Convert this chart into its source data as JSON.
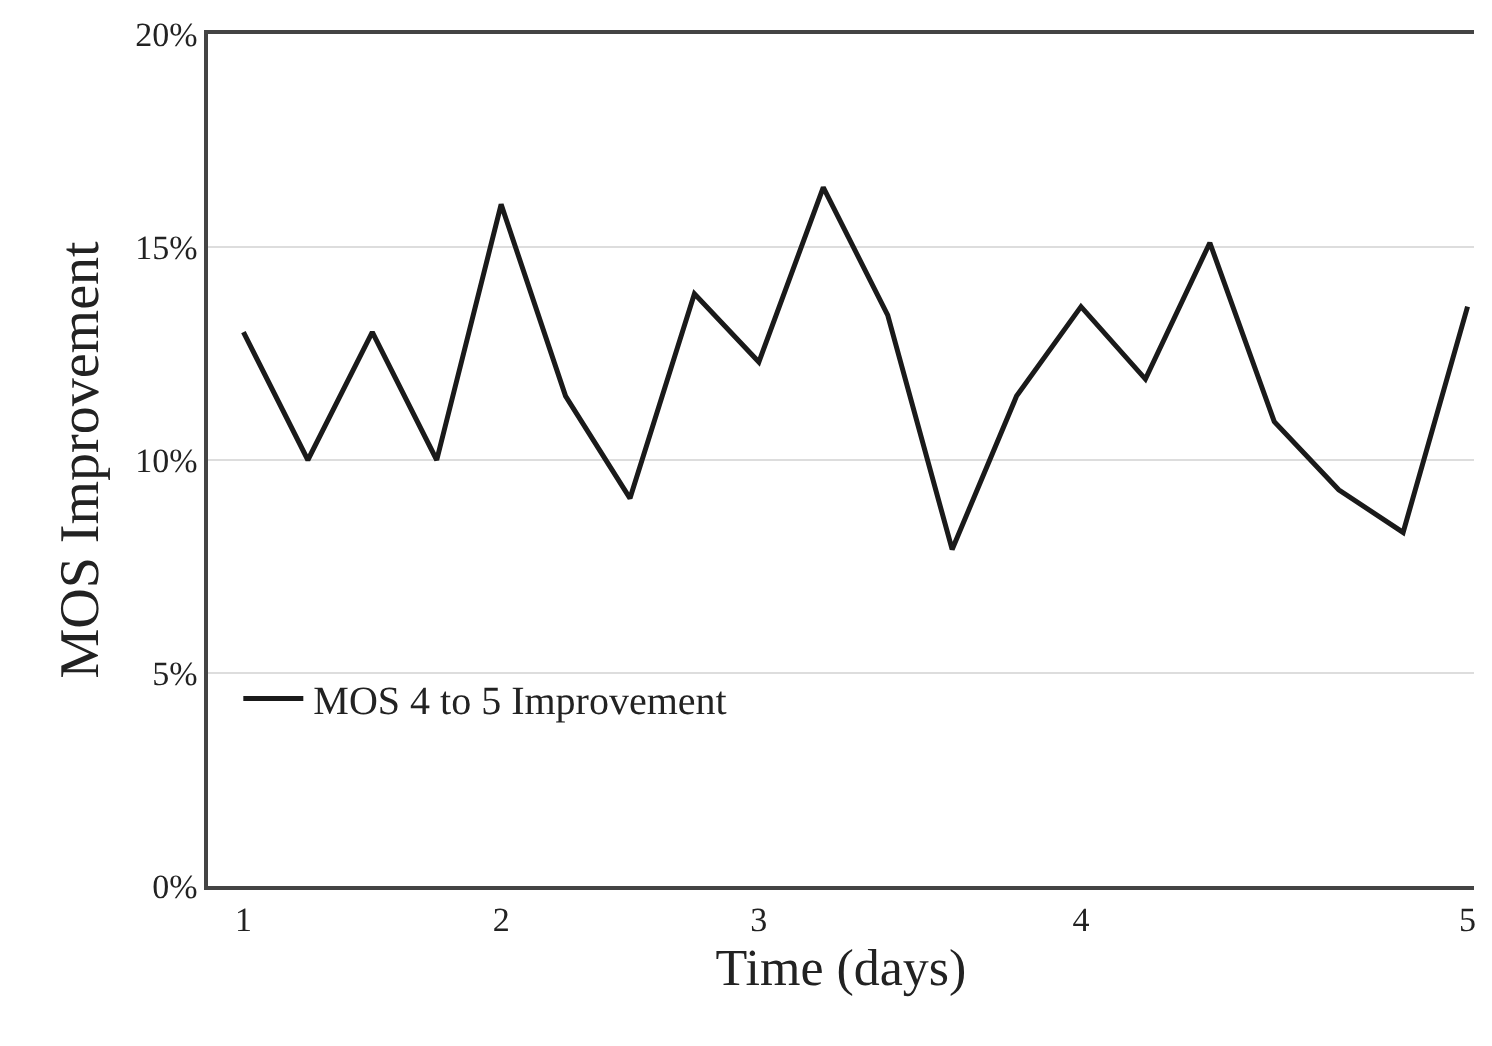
{
  "chart_data": {
    "type": "line",
    "xlabel": "Time (days)",
    "ylabel": "MOS Improvement",
    "categories": [
      "1",
      null,
      null,
      null,
      "2",
      null,
      null,
      null,
      "3",
      null,
      null,
      null,
      null,
      "4",
      null,
      null,
      null,
      null,
      null,
      "5"
    ],
    "series": [
      {
        "name": "MOS 4 to 5 Improvement",
        "color": "#1a1a1a",
        "values": [
          13.0,
          10.0,
          13.0,
          10.0,
          16.0,
          11.5,
          9.1,
          13.9,
          12.3,
          16.4,
          13.4,
          7.9,
          11.5,
          13.6,
          11.9,
          15.1,
          10.9,
          9.3,
          8.3,
          13.6
        ]
      }
    ],
    "ylim": [
      0,
      20
    ],
    "yticks": [
      {
        "value": 0,
        "label": "0%"
      },
      {
        "value": 5,
        "label": "5%"
      },
      {
        "value": 10,
        "label": "10%"
      },
      {
        "value": 15,
        "label": "15%"
      },
      {
        "value": 20,
        "label": "20%"
      }
    ],
    "grid": "y",
    "legend": "bottom left",
    "marker": "none",
    "line_style": "solid"
  }
}
